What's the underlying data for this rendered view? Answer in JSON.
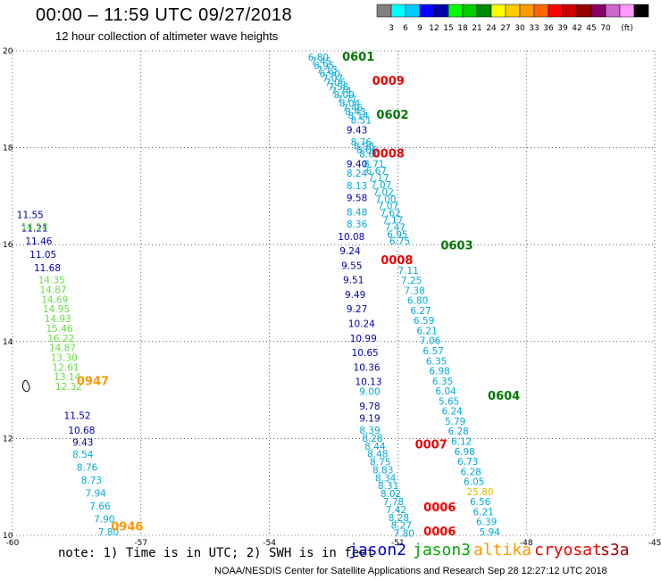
{
  "title": "00:00 – 11:59 UTC 09/27/2018",
  "subtitle": "12 hour collection of altimeter wave heights",
  "note": "note: 1) Time is in UTC; 2) SWH is in feet",
  "credit": "NOAA/NESDIS Center for Satellite Applications and Research   Sep 28 12:27:12 UTC 2018",
  "satellites": [
    {
      "name": "jason2",
      "color": "#0000cc"
    },
    {
      "name": "jason3",
      "color": "#00aa00"
    },
    {
      "name": "altika",
      "color": "#ff9900"
    },
    {
      "name": "cryosat",
      "color": "#ee0000"
    },
    {
      "name": "s3a",
      "color": "#aa0000"
    }
  ],
  "colorbar": {
    "colors": [
      "#808080",
      "#00ffff",
      "#00ccff",
      "#0000ff",
      "#0000aa",
      "#00ff00",
      "#00cc00",
      "#008800",
      "#ffff00",
      "#ffcc00",
      "#ff9900",
      "#ff6600",
      "#ff0000",
      "#cc0000",
      "#990000",
      "#880066",
      "#cc66cc",
      "#ff99ff",
      "#000000"
    ],
    "labels": [
      "3",
      "6",
      "9",
      "12",
      "15",
      "18",
      "21",
      "24",
      "27",
      "30",
      "33",
      "36",
      "39",
      "42",
      "45",
      "70",
      "(ft)"
    ]
  },
  "chart_data": {
    "type": "scatter",
    "xlim": [
      -60,
      -45
    ],
    "ylim": [
      10,
      20
    ],
    "xticks": [
      "-60",
      "-57",
      "-54",
      "-51",
      "-48",
      "-45"
    ],
    "yticks": [
      "20",
      "18",
      "16",
      "14",
      "12",
      "10"
    ],
    "times": [
      {
        "label": "0601",
        "x": -52.3,
        "y": 19.8,
        "color": "#007700"
      },
      {
        "label": "0009",
        "x": -51.6,
        "y": 19.3,
        "color": "#ee0000"
      },
      {
        "label": "0602",
        "x": -51.5,
        "y": 18.6,
        "color": "#007700"
      },
      {
        "label": "0008",
        "x": -51.6,
        "y": 17.8,
        "color": "#ee0000"
      },
      {
        "label": "0603",
        "x": -50.0,
        "y": 15.9,
        "color": "#007700"
      },
      {
        "label": "0008",
        "x": -51.4,
        "y": 15.6,
        "color": "#ee0000"
      },
      {
        "label": "0947",
        "x": -58.5,
        "y": 13.1,
        "color": "#ff9900"
      },
      {
        "label": "0604",
        "x": -48.9,
        "y": 12.8,
        "color": "#007700"
      },
      {
        "label": "0007",
        "x": -50.6,
        "y": 11.8,
        "color": "#ee0000"
      },
      {
        "label": "0006",
        "x": -50.4,
        "y": 10.5,
        "color": "#ee0000"
      },
      {
        "label": "0946",
        "x": -57.7,
        "y": 10.1,
        "color": "#ff9900"
      },
      {
        "label": "0006",
        "x": -50.4,
        "y": 10.0,
        "color": "#ee0000"
      }
    ],
    "tracks": [
      {
        "color": "#00aadd",
        "x0": -53.1,
        "y0": 19.8,
        "x1": -52.1,
        "y1": 18.5,
        "values": [
          "6.80",
          "7.45",
          "6.95",
          "7.13",
          "6.90",
          "7.07",
          "7.06",
          "7.58",
          "7.74",
          "8.09",
          "7.71",
          "8.04",
          "7.46",
          "8.43",
          "8.14",
          "8.51"
        ]
      },
      {
        "color": "#0000aa",
        "x0": -52.2,
        "y0": 18.3,
        "x1": -52.0,
        "y1": 18.3,
        "values": [
          "9.43"
        ]
      },
      {
        "color": "#00aadd",
        "x0": -52.1,
        "y0": 18.05,
        "x1": -51.9,
        "y1": 17.8,
        "values": [
          "8.76",
          "8.98",
          "8.66",
          "8.60"
        ]
      },
      {
        "color": "#0000aa",
        "x0": -52.2,
        "y0": 17.6,
        "x1": -52.2,
        "y1": 17.6,
        "values": [
          "9.40"
        ]
      },
      {
        "color": "#00aadd",
        "x0": -51.8,
        "y0": 17.6,
        "x1": -51.2,
        "y1": 16.0,
        "values": [
          "8.71",
          "6.67",
          "7.17",
          "7.07",
          "7.02",
          "7.00",
          "7.07",
          "7.62",
          "7.17",
          "7.47",
          "6.95",
          "6.75"
        ]
      },
      {
        "color": "#00aadd",
        "x0": -52.2,
        "y0": 17.4,
        "x1": -52.2,
        "y1": 17.15,
        "values": [
          "8.24",
          "8.13"
        ]
      },
      {
        "color": "#0000aa",
        "x0": -52.2,
        "y0": 16.9,
        "x1": -52.2,
        "y1": 16.9,
        "values": [
          "9.58"
        ]
      },
      {
        "color": "#00aadd",
        "x0": -52.2,
        "y0": 16.6,
        "x1": -52.2,
        "y1": 16.35,
        "values": [
          "8.48",
          "8.36"
        ]
      },
      {
        "color": "#0000aa",
        "x0": -52.4,
        "y0": 16.1,
        "x1": -52.0,
        "y1": 13.1,
        "values": [
          "10.08",
          "9.24",
          "9.55",
          "9.51",
          "9.49",
          "9.27",
          "10.24",
          "10.99",
          "10.65",
          "10.36",
          "10.13"
        ]
      },
      {
        "color": "#00aadd",
        "x0": -51.0,
        "y0": 15.4,
        "x1": -49.1,
        "y1": 10.0,
        "values": [
          "7.11",
          "7.25",
          "7.38",
          "6.80",
          "6.27",
          "6.59",
          "6.21",
          "7.06",
          "6.57",
          "6.35",
          "6.98",
          "6.35",
          "6.04",
          "5.65",
          "6.24",
          "5.79",
          "6.28",
          "6.12",
          "6.98",
          "6.73",
          "6.28",
          "6.05",
          "25.80",
          "6.56",
          "6.21",
          "6.39",
          "5.94"
        ]
      },
      {
        "color": "#00aadd",
        "x0": -51.9,
        "y0": 12.9,
        "x1": -51.9,
        "y1": 12.9,
        "values": [
          "9.00"
        ]
      },
      {
        "color": "#0000aa",
        "x0": -51.9,
        "y0": 12.6,
        "x1": -51.9,
        "y1": 12.35,
        "values": [
          "9.78",
          "9.19"
        ]
      },
      {
        "color": "#00aadd",
        "x0": -51.9,
        "y0": 12.1,
        "x1": -51.1,
        "y1": 9.97,
        "values": [
          "8.39",
          "8.28",
          "8.44",
          "8.48",
          "8.75",
          "8.83",
          "8.34",
          "8.31",
          "8.02",
          "7.78",
          "7.42",
          "8.28",
          "8.27",
          "7.80"
        ]
      },
      {
        "color": "#0000aa",
        "x0": -59.9,
        "y0": 16.55,
        "x1": -59.5,
        "y1": 15.45,
        "values": [
          "11.55",
          "11.21",
          "11.46",
          "11.05",
          "11.68"
        ]
      },
      {
        "color": "#66dd44",
        "x0": -59.8,
        "y0": 16.3,
        "x1": -59.8,
        "y1": 16.3,
        "values": [
          "14.18"
        ]
      },
      {
        "color": "#66dd44",
        "x0": -59.4,
        "y0": 15.2,
        "x1": -59.0,
        "y1": 13.0,
        "values": [
          "14.35",
          "14.87",
          "14.69",
          "14.95",
          "14.93",
          "15.46",
          "16.22",
          "14.87",
          "13.30",
          "12.61",
          "13.14",
          "12.32"
        ]
      },
      {
        "color": "#0000aa",
        "x0": -58.8,
        "y0": 12.4,
        "x1": -58.7,
        "y1": 12.1,
        "values": [
          "11.52",
          "10.68"
        ]
      },
      {
        "color": "#0000aa",
        "x0": -58.6,
        "y0": 11.85,
        "x1": -58.6,
        "y1": 11.85,
        "values": [
          "9.43"
        ]
      },
      {
        "color": "#00aadd",
        "x0": -58.6,
        "y0": 11.6,
        "x1": -58.0,
        "y1": 10.0,
        "values": [
          "8.54",
          "8.76",
          "8.73",
          "7.94",
          "7.66",
          "7.90",
          "7.80"
        ]
      }
    ]
  }
}
